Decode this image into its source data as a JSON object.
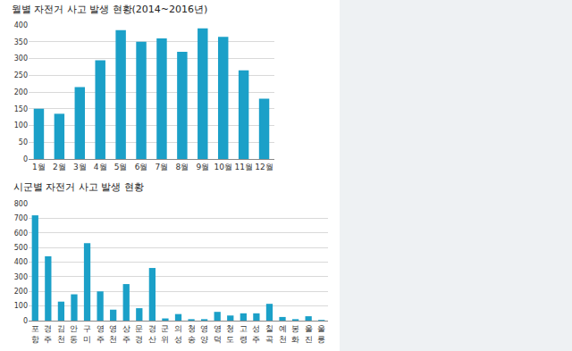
{
  "chart_data": [
    {
      "type": "bar",
      "title": "월별 자전거 사고 발생 현황(2014~2016년)",
      "categories": [
        "1월",
        "2월",
        "3월",
        "4월",
        "5월",
        "6월",
        "7월",
        "8월",
        "9월",
        "10월",
        "11월",
        "12월"
      ],
      "values": [
        150,
        135,
        215,
        295,
        385,
        350,
        360,
        320,
        390,
        365,
        265,
        180
      ],
      "color": "#1ba0c8",
      "ylim": [
        0,
        400
      ],
      "yticks": [
        0,
        50,
        100,
        150,
        200,
        250,
        300,
        350,
        400
      ],
      "grid": true
    },
    {
      "type": "bar",
      "title": "시군별 자전거 사고 발생 현황",
      "categories": [
        "포항",
        "경주",
        "김천",
        "안동",
        "구미",
        "영주",
        "영천",
        "상주",
        "문경",
        "경산",
        "군위",
        "의성",
        "청송",
        "영양",
        "영덕",
        "청도",
        "고령",
        "성주",
        "칠곡",
        "예천",
        "봉화",
        "울진",
        "울릉"
      ],
      "values": [
        720,
        440,
        130,
        180,
        530,
        200,
        75,
        250,
        85,
        360,
        15,
        45,
        10,
        10,
        60,
        35,
        50,
        50,
        115,
        25,
        10,
        30,
        5
      ],
      "color": "#1ba0c8",
      "ylim": [
        0,
        800
      ],
      "yticks": [
        0,
        100,
        200,
        300,
        400,
        500,
        600,
        700,
        800
      ],
      "grid": true
    }
  ]
}
